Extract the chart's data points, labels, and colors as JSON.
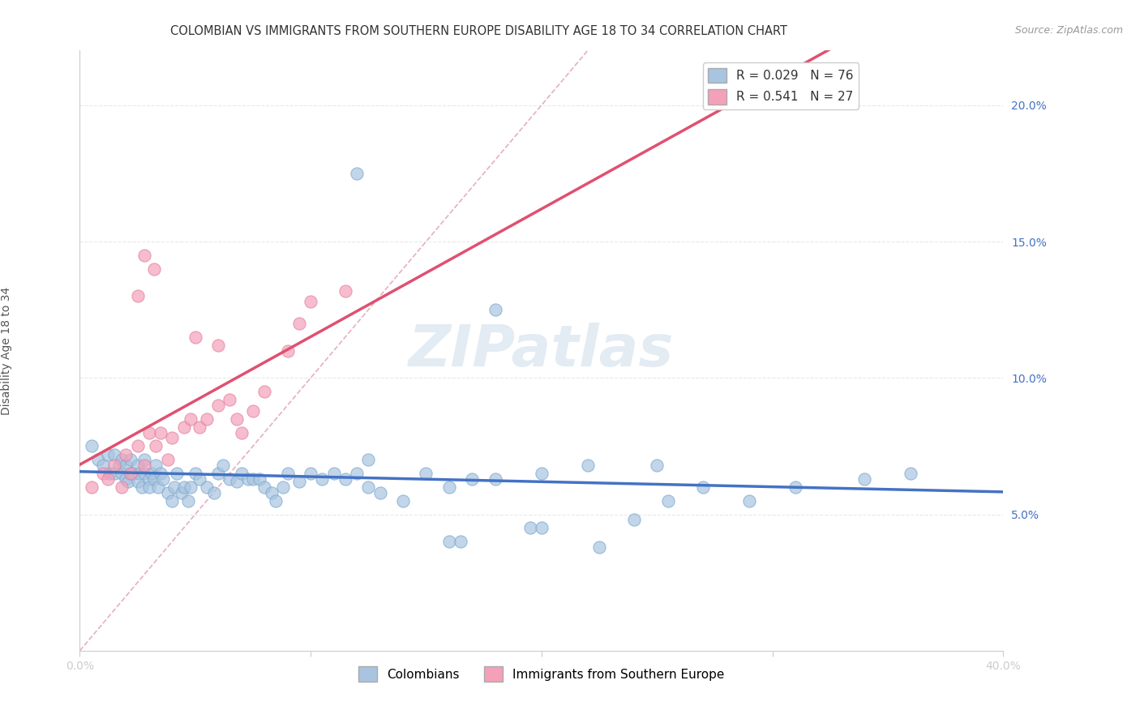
{
  "title": "COLOMBIAN VS IMMIGRANTS FROM SOUTHERN EUROPE DISABILITY AGE 18 TO 34 CORRELATION CHART",
  "source": "Source: ZipAtlas.com",
  "ylabel": "Disability Age 18 to 34",
  "xlim": [
    0.0,
    0.4
  ],
  "ylim": [
    0.0,
    0.22
  ],
  "xticks": [
    0.0,
    0.1,
    0.2,
    0.3,
    0.4
  ],
  "xticklabels": [
    "0.0%",
    "",
    "",
    "",
    "40.0%"
  ],
  "yticks": [
    0.05,
    0.1,
    0.15,
    0.2
  ],
  "yticklabels": [
    "5.0%",
    "10.0%",
    "15.0%",
    "20.0%"
  ],
  "colombian_color": "#a8c4e0",
  "colombian_edge_color": "#7aa8cc",
  "southern_europe_color": "#f4a0b8",
  "southern_europe_edge_color": "#e080a0",
  "regression_line_color_blue": "#4472c4",
  "regression_line_color_pink": "#e05070",
  "diagonal_line_color": "#e0a8b8",
  "r_colombian": 0.029,
  "n_colombian": 76,
  "r_southern": 0.541,
  "n_southern": 27,
  "colombian_x": [
    0.005,
    0.008,
    0.01,
    0.012,
    0.013,
    0.015,
    0.015,
    0.017,
    0.018,
    0.018,
    0.02,
    0.02,
    0.021,
    0.022,
    0.022,
    0.023,
    0.025,
    0.025,
    0.026,
    0.027,
    0.028,
    0.028,
    0.03,
    0.03,
    0.031,
    0.032,
    0.033,
    0.034,
    0.035,
    0.036,
    0.038,
    0.04,
    0.041,
    0.042,
    0.044,
    0.045,
    0.047,
    0.048,
    0.05,
    0.052,
    0.055,
    0.058,
    0.06,
    0.062,
    0.065,
    0.068,
    0.07,
    0.073,
    0.075,
    0.078,
    0.08,
    0.083,
    0.085,
    0.088,
    0.09,
    0.095,
    0.1,
    0.105,
    0.11,
    0.115,
    0.12,
    0.125,
    0.13,
    0.14,
    0.15,
    0.16,
    0.17,
    0.18,
    0.2,
    0.22,
    0.25,
    0.27,
    0.29,
    0.31,
    0.34,
    0.36
  ],
  "colombian_y": [
    0.075,
    0.07,
    0.068,
    0.072,
    0.065,
    0.072,
    0.065,
    0.068,
    0.07,
    0.065,
    0.063,
    0.068,
    0.062,
    0.065,
    0.07,
    0.065,
    0.062,
    0.068,
    0.065,
    0.06,
    0.065,
    0.07,
    0.063,
    0.06,
    0.065,
    0.063,
    0.068,
    0.06,
    0.065,
    0.063,
    0.058,
    0.055,
    0.06,
    0.065,
    0.058,
    0.06,
    0.055,
    0.06,
    0.065,
    0.063,
    0.06,
    0.058,
    0.065,
    0.068,
    0.063,
    0.062,
    0.065,
    0.063,
    0.063,
    0.063,
    0.06,
    0.058,
    0.055,
    0.06,
    0.065,
    0.062,
    0.065,
    0.063,
    0.065,
    0.063,
    0.065,
    0.06,
    0.058,
    0.055,
    0.065,
    0.06,
    0.063,
    0.063,
    0.065,
    0.068,
    0.068,
    0.06,
    0.055,
    0.06,
    0.063,
    0.065
  ],
  "colombian_y_outliers": [
    0.175,
    0.125,
    0.07,
    0.045,
    0.038,
    0.055,
    0.04,
    0.04,
    0.045,
    0.048
  ],
  "colombian_x_outliers": [
    0.12,
    0.18,
    0.125,
    0.195,
    0.225,
    0.255,
    0.16,
    0.165,
    0.2,
    0.24
  ],
  "southern_x": [
    0.005,
    0.01,
    0.012,
    0.015,
    0.018,
    0.02,
    0.022,
    0.025,
    0.028,
    0.03,
    0.033,
    0.035,
    0.038,
    0.04,
    0.045,
    0.048,
    0.052,
    0.055,
    0.06,
    0.065,
    0.07,
    0.075,
    0.08,
    0.09,
    0.095,
    0.1,
    0.115
  ],
  "southern_y": [
    0.06,
    0.065,
    0.063,
    0.068,
    0.06,
    0.072,
    0.065,
    0.075,
    0.068,
    0.08,
    0.075,
    0.08,
    0.07,
    0.078,
    0.082,
    0.085,
    0.082,
    0.085,
    0.09,
    0.092,
    0.08,
    0.088,
    0.095,
    0.11,
    0.12,
    0.128,
    0.132
  ],
  "southern_y_outliers": [
    0.13,
    0.145,
    0.14,
    0.115,
    0.112,
    0.085
  ],
  "southern_x_outliers": [
    0.025,
    0.028,
    0.032,
    0.05,
    0.06,
    0.068
  ],
  "background_color": "#ffffff",
  "grid_color": "#e8e8e8",
  "title_fontsize": 10.5,
  "axis_label_fontsize": 10,
  "tick_fontsize": 10,
  "legend_fontsize": 11
}
